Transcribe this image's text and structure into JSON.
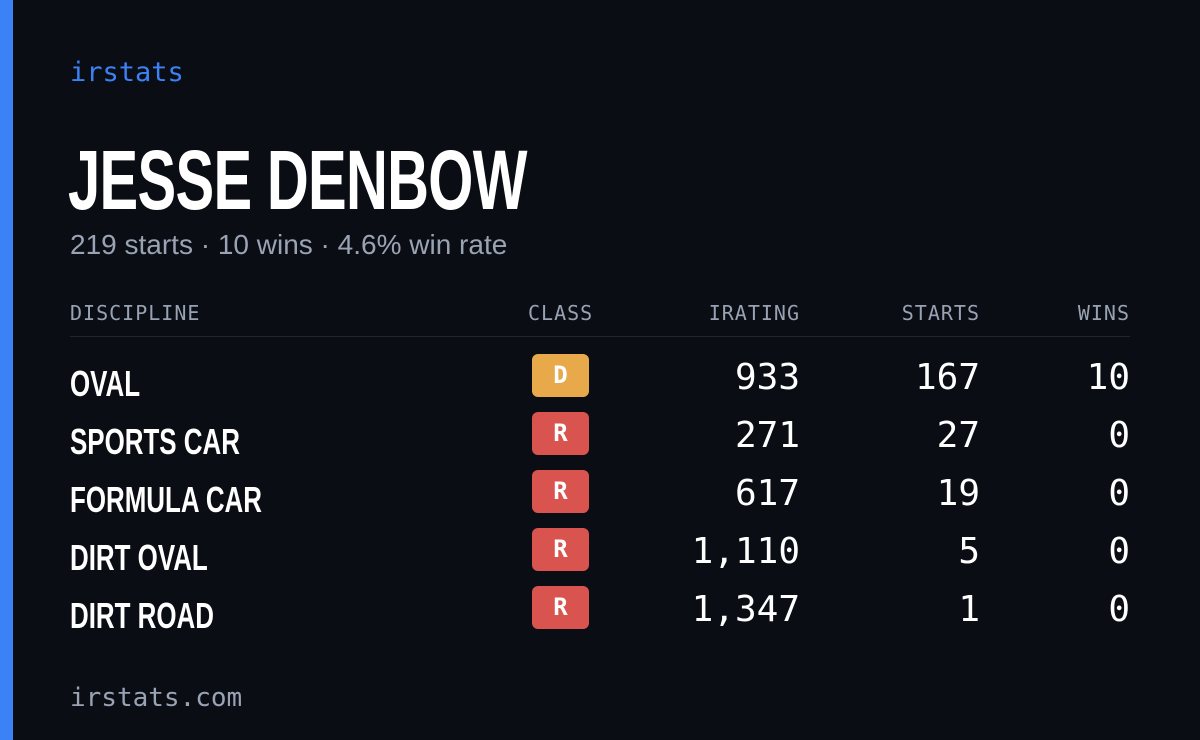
{
  "brand": "irstats",
  "player": {
    "name": "JESSE DENBOW",
    "summary": "219 starts · 10 wins · 4.6% win rate"
  },
  "table": {
    "headers": {
      "discipline": "DISCIPLINE",
      "class": "CLASS",
      "irating": "IRATING",
      "starts": "STARTS",
      "wins": "WINS"
    },
    "rows": [
      {
        "discipline": "OVAL",
        "class": "D",
        "class_color": "#e8a94a",
        "irating": "933",
        "starts": "167",
        "wins": "10"
      },
      {
        "discipline": "SPORTS CAR",
        "class": "R",
        "class_color": "#d9534f",
        "irating": "271",
        "starts": "27",
        "wins": "0"
      },
      {
        "discipline": "FORMULA CAR",
        "class": "R",
        "class_color": "#d9534f",
        "irating": "617",
        "starts": "19",
        "wins": "0"
      },
      {
        "discipline": "DIRT OVAL",
        "class": "R",
        "class_color": "#d9534f",
        "irating": "1,110",
        "starts": "5",
        "wins": "0"
      },
      {
        "discipline": "DIRT ROAD",
        "class": "R",
        "class_color": "#d9534f",
        "irating": "1,347",
        "starts": "1",
        "wins": "0"
      }
    ]
  },
  "footer": "irstats.com",
  "colors": {
    "background": "#0a0d14",
    "accent": "#3b82f6",
    "muted_text": "#9aa3b4"
  }
}
